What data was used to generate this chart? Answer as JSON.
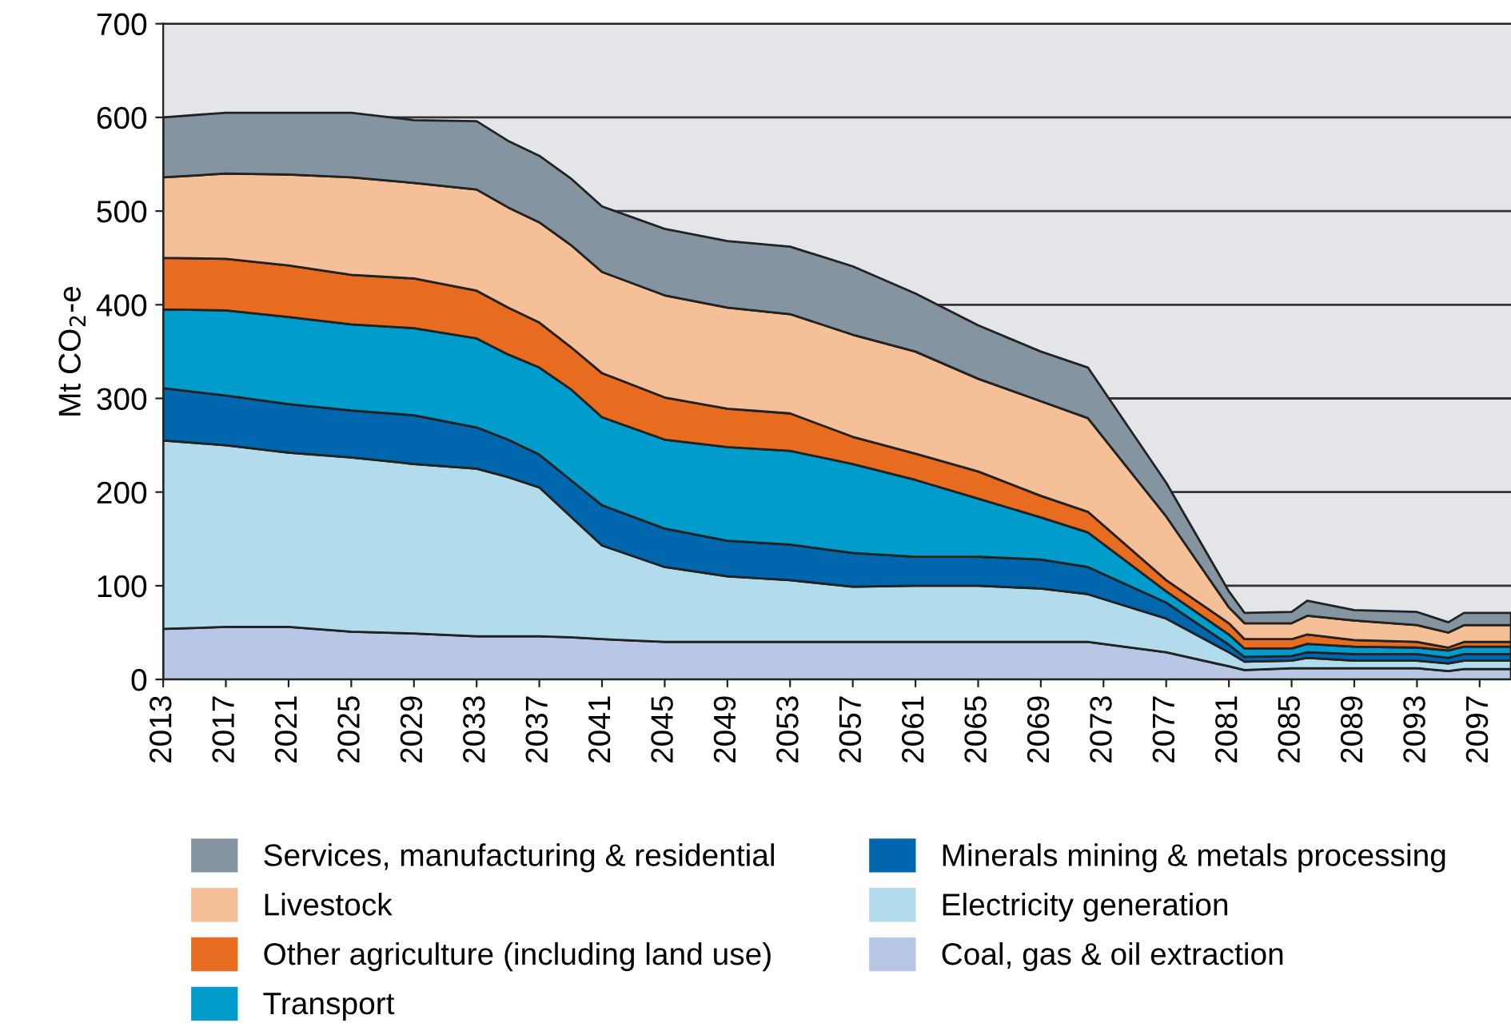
{
  "chart_data": {
    "type": "area",
    "stacked": true,
    "ylabel": "Mt CO$_{2}$-e",
    "x": [
      2013,
      2017,
      2021,
      2025,
      2029,
      2033,
      2035,
      2037,
      2039,
      2041,
      2045,
      2049,
      2053,
      2057,
      2061,
      2065,
      2069,
      2072,
      2077,
      2081,
      2082,
      2085,
      2086,
      2089,
      2093,
      2095,
      2096,
      2099
    ],
    "series": [
      {
        "name": "Coal, gas & oil extraction",
        "color": "#b9c7e6",
        "values": [
          54,
          56,
          56,
          51,
          49,
          46,
          46,
          46,
          45,
          43,
          40,
          40,
          40,
          40,
          40,
          40,
          40,
          40,
          29,
          14,
          10,
          12,
          12,
          12,
          12,
          9,
          11,
          11
        ]
      },
      {
        "name": "Electricity generation",
        "color": "#b2dcec",
        "values": [
          201,
          194,
          186,
          186,
          181,
          179,
          170,
          159,
          129,
          100,
          80,
          70,
          66,
          59,
          60,
          60,
          57,
          51,
          36,
          15,
          9,
          8,
          11,
          8,
          8,
          8,
          9,
          9
        ]
      },
      {
        "name": "Minerals mining & metals processing",
        "color": "#0066ae",
        "values": [
          56,
          53,
          52,
          50,
          52,
          44,
          40,
          35,
          39,
          43,
          41,
          38,
          38,
          36,
          31,
          31,
          31,
          29,
          17,
          8,
          5,
          5,
          6,
          7,
          7,
          6,
          7,
          7
        ]
      },
      {
        "name": "Transport",
        "color": "#009ccb",
        "values": [
          84,
          91,
          93,
          92,
          93,
          95,
          91,
          93,
          97,
          94,
          95,
          100,
          100,
          95,
          82,
          62,
          45,
          37,
          12,
          11,
          9,
          8,
          9,
          8,
          7,
          8,
          8,
          8
        ]
      },
      {
        "name": "Other agriculture (including land use)",
        "color": "#e86c1f",
        "values": [
          55,
          55,
          55,
          53,
          53,
          51,
          50,
          48,
          45,
          47,
          45,
          41,
          40,
          29,
          28,
          29,
          23,
          22,
          12,
          12,
          10,
          10,
          10,
          7,
          6,
          3,
          5,
          5
        ]
      },
      {
        "name": "Livestock",
        "color": "#f5bf97",
        "values": [
          86,
          91,
          97,
          104,
          102,
          108,
          107,
          107,
          109,
          108,
          109,
          108,
          106,
          109,
          109,
          99,
          101,
          100,
          68,
          17,
          17,
          17,
          20,
          21,
          18,
          16,
          18,
          18
        ]
      },
      {
        "name": "Services, manufacturing & residential",
        "color": "#8494a1",
        "values": [
          64,
          65,
          66,
          69,
          67,
          73,
          71,
          71,
          71,
          70,
          71,
          71,
          72,
          73,
          62,
          57,
          53,
          54,
          36,
          17,
          11,
          12,
          16,
          11,
          14,
          11,
          13,
          13
        ]
      }
    ],
    "xlim": [
      2013,
      2099
    ],
    "xticks": [
      2013,
      2017,
      2021,
      2025,
      2029,
      2033,
      2037,
      2041,
      2045,
      2049,
      2053,
      2057,
      2061,
      2065,
      2069,
      2073,
      2077,
      2081,
      2085,
      2089,
      2093,
      2097
    ],
    "ylim": [
      0,
      700
    ],
    "yticks": [
      0,
      100,
      200,
      300,
      400,
      500,
      600,
      700
    ],
    "grid": "y",
    "legend": "bottom"
  }
}
